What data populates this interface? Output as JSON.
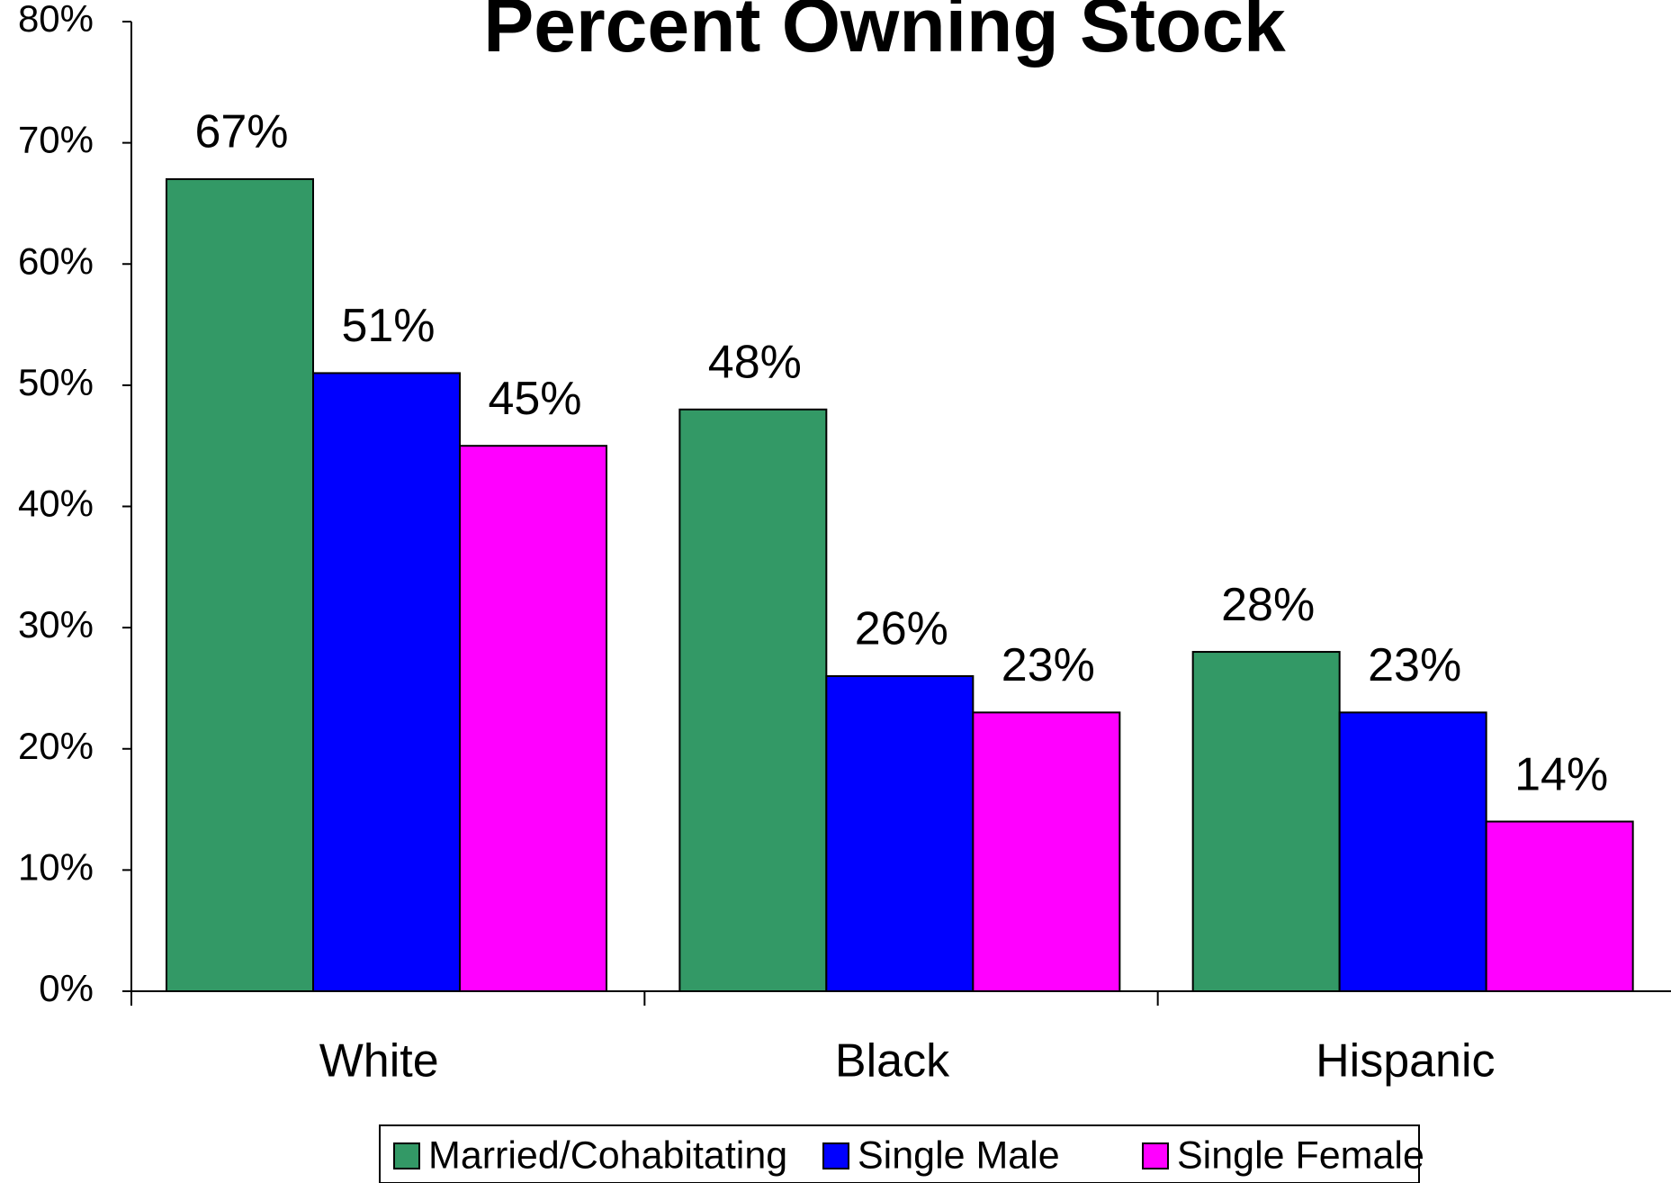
{
  "chart_data": {
    "type": "bar",
    "title": "Percent Owning Stock",
    "categories": [
      "White",
      "Black",
      "Hispanic"
    ],
    "series": [
      {
        "name": "Married/Cohabitating",
        "color": "#339966",
        "values": [
          67,
          48,
          28
        ],
        "value_labels": [
          "67%",
          "48%",
          "28%"
        ]
      },
      {
        "name": "Single Male",
        "color": "#0000ff",
        "values": [
          51,
          26,
          23
        ],
        "value_labels": [
          "51%",
          "26%",
          "23%"
        ]
      },
      {
        "name": "Single Female",
        "color": "#ff00ff",
        "values": [
          45,
          23,
          14
        ],
        "value_labels": [
          "45%",
          "23%",
          "14%"
        ]
      }
    ],
    "ylim": [
      0,
      80
    ],
    "yticks": [
      {
        "value": 0,
        "label": "0%"
      },
      {
        "value": 10,
        "label": "10%"
      },
      {
        "value": 20,
        "label": "20%"
      },
      {
        "value": 30,
        "label": "30%"
      },
      {
        "value": 40,
        "label": "40%"
      },
      {
        "value": 50,
        "label": "50%"
      },
      {
        "value": 60,
        "label": "60%"
      },
      {
        "value": 70,
        "label": "70%"
      },
      {
        "value": 80,
        "label": "80%"
      }
    ],
    "grid": false,
    "legend": "bottom"
  }
}
